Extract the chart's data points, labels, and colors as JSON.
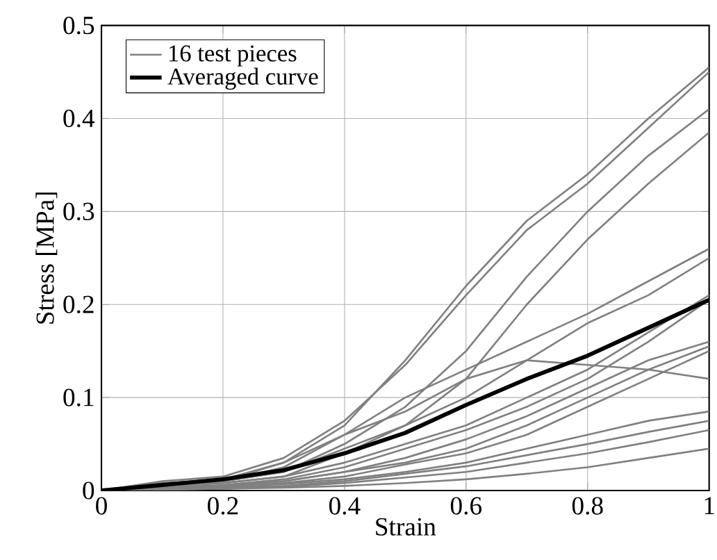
{
  "chart_data": {
    "type": "line",
    "xlabel": "Strain",
    "ylabel": "Stress [MPa]",
    "x": [
      0,
      0.1,
      0.2,
      0.3,
      0.4,
      0.5,
      0.6,
      0.7,
      0.8,
      0.9,
      1
    ],
    "xlim": [
      0,
      1
    ],
    "ylim": [
      0,
      0.5
    ],
    "xticks": [
      0,
      0.2,
      0.4,
      0.6,
      0.8,
      1
    ],
    "yticks": [
      0,
      0.1,
      0.2,
      0.3,
      0.4,
      0.5
    ],
    "grid": true,
    "legend": "top left",
    "series": [
      {
        "name": "16 test pieces",
        "color": "#808080",
        "values": [
          0,
          0.008,
          0.012,
          0.03,
          0.07,
          0.14,
          0.22,
          0.29,
          0.34,
          0.4,
          0.455
        ]
      },
      {
        "color": "#808080",
        "values": [
          0,
          0.01,
          0.015,
          0.035,
          0.075,
          0.135,
          0.21,
          0.28,
          0.33,
          0.39,
          0.45
        ]
      },
      {
        "color": "#808080",
        "values": [
          0,
          0.005,
          0.01,
          0.02,
          0.05,
          0.09,
          0.15,
          0.23,
          0.3,
          0.36,
          0.41
        ]
      },
      {
        "color": "#808080",
        "values": [
          0,
          0.005,
          0.008,
          0.015,
          0.04,
          0.07,
          0.12,
          0.2,
          0.27,
          0.33,
          0.385
        ]
      },
      {
        "color": "#808080",
        "values": [
          0,
          0.006,
          0.01,
          0.025,
          0.06,
          0.1,
          0.13,
          0.16,
          0.19,
          0.225,
          0.26
        ]
      },
      {
        "color": "#808080",
        "values": [
          0,
          0.005,
          0.01,
          0.02,
          0.045,
          0.07,
          0.1,
          0.14,
          0.18,
          0.21,
          0.25
        ]
      },
      {
        "color": "#808080",
        "values": [
          0,
          0.004,
          0.008,
          0.015,
          0.03,
          0.05,
          0.07,
          0.1,
          0.13,
          0.17,
          0.21
        ]
      },
      {
        "color": "#808080",
        "values": [
          0,
          0.003,
          0.006,
          0.012,
          0.025,
          0.045,
          0.065,
          0.09,
          0.12,
          0.16,
          0.205
        ]
      },
      {
        "color": "#808080",
        "values": [
          0,
          0.005,
          0.01,
          0.03,
          0.06,
          0.085,
          0.12,
          0.14,
          0.135,
          0.13,
          0.12
        ]
      },
      {
        "color": "#808080",
        "values": [
          0,
          0.003,
          0.005,
          0.01,
          0.02,
          0.035,
          0.055,
          0.08,
          0.11,
          0.14,
          0.16
        ]
      },
      {
        "color": "#808080",
        "values": [
          0,
          0.003,
          0.005,
          0.01,
          0.02,
          0.03,
          0.045,
          0.07,
          0.1,
          0.13,
          0.155
        ]
      },
      {
        "color": "#808080",
        "values": [
          0,
          0.002,
          0.004,
          0.008,
          0.015,
          0.028,
          0.04,
          0.06,
          0.09,
          0.12,
          0.15
        ]
      },
      {
        "color": "#808080",
        "values": [
          0,
          0.002,
          0.004,
          0.007,
          0.012,
          0.02,
          0.03,
          0.045,
          0.06,
          0.075,
          0.085
        ]
      },
      {
        "color": "#808080",
        "values": [
          0,
          0.002,
          0.003,
          0.005,
          0.01,
          0.018,
          0.026,
          0.038,
          0.05,
          0.063,
          0.075
        ]
      },
      {
        "color": "#808080",
        "values": [
          0,
          0.001,
          0.002,
          0.004,
          0.008,
          0.014,
          0.02,
          0.03,
          0.04,
          0.052,
          0.065
        ]
      },
      {
        "color": "#808080",
        "values": [
          0,
          0.001,
          0.002,
          0.003,
          0.005,
          0.008,
          0.012,
          0.018,
          0.025,
          0.035,
          0.045
        ]
      },
      {
        "name": "Averaged curve",
        "color": "#000000",
        "values": [
          0,
          0.006,
          0.012,
          0.022,
          0.04,
          0.062,
          0.092,
          0.12,
          0.145,
          0.175,
          0.205
        ]
      }
    ]
  }
}
